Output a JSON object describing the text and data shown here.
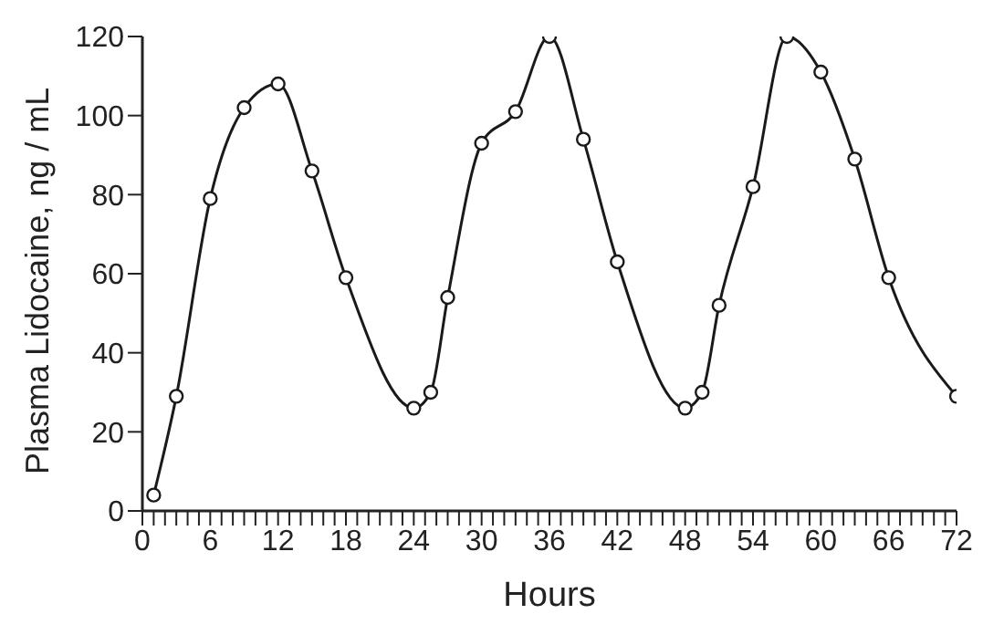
{
  "chart_data": {
    "type": "line",
    "xlabel": "Hours",
    "ylabel": "Plasma Lidocaine, ng / mL",
    "x": [
      1,
      3,
      6,
      9,
      12,
      15,
      18,
      24,
      25.5,
      27,
      30,
      33,
      36,
      39,
      42,
      48,
      49.5,
      51,
      54,
      57,
      60,
      63,
      66,
      72
    ],
    "series": [
      {
        "color": "#1a1a1a",
        "values": [
          4,
          29,
          79,
          102,
          108,
          86,
          59,
          26,
          30,
          54,
          93,
          101,
          120,
          94,
          63,
          26,
          30,
          52,
          82,
          120,
          111,
          89,
          59,
          29
        ]
      }
    ],
    "xlim": [
      0,
      72
    ],
    "ylim": [
      0,
      120
    ],
    "xticks": [
      0,
      {
        "value": 1,
        "label": null
      },
      {
        "value": 2,
        "label": null
      },
      {
        "value": 3,
        "label": null
      },
      {
        "value": 4,
        "label": null
      },
      {
        "value": 5,
        "label": null
      },
      6,
      {
        "value": 7,
        "label": null
      },
      {
        "value": 8,
        "label": null
      },
      {
        "value": 9,
        "label": null
      },
      {
        "value": 10,
        "label": null
      },
      {
        "value": 11,
        "label": null
      },
      12,
      {
        "value": 13,
        "label": null
      },
      {
        "value": 14,
        "label": null
      },
      {
        "value": 15,
        "label": null
      },
      {
        "value": 16,
        "label": null
      },
      {
        "value": 17,
        "label": null
      },
      18,
      {
        "value": 19,
        "label": null
      },
      {
        "value": 20,
        "label": null
      },
      {
        "value": 21,
        "label": null
      },
      {
        "value": 22,
        "label": null
      },
      {
        "value": 23,
        "label": null
      },
      24,
      {
        "value": 25,
        "label": null
      },
      {
        "value": 26,
        "label": null
      },
      {
        "value": 27,
        "label": null
      },
      {
        "value": 28,
        "label": null
      },
      {
        "value": 29,
        "label": null
      },
      30,
      {
        "value": 31,
        "label": null
      },
      {
        "value": 32,
        "label": null
      },
      {
        "value": 33,
        "label": null
      },
      {
        "value": 34,
        "label": null
      },
      {
        "value": 35,
        "label": null
      },
      36,
      {
        "value": 37,
        "label": null
      },
      {
        "value": 38,
        "label": null
      },
      {
        "value": 39,
        "label": null
      },
      {
        "value": 40,
        "label": null
      },
      {
        "value": 41,
        "label": null
      },
      42,
      {
        "value": 43,
        "label": null
      },
      {
        "value": 44,
        "label": null
      },
      {
        "value": 45,
        "label": null
      },
      {
        "value": 46,
        "label": null
      },
      {
        "value": 47,
        "label": null
      },
      48,
      {
        "value": 49,
        "label": null
      },
      {
        "value": 50,
        "label": null
      },
      {
        "value": 51,
        "label": null
      },
      {
        "value": 52,
        "label": null
      },
      {
        "value": 53,
        "label": null
      },
      54,
      {
        "value": 55,
        "label": null
      },
      {
        "value": 56,
        "label": null
      },
      {
        "value": 57,
        "label": null
      },
      {
        "value": 58,
        "label": null
      },
      {
        "value": 59,
        "label": null
      },
      60,
      {
        "value": 61,
        "label": null
      },
      {
        "value": 62,
        "label": null
      },
      {
        "value": 63,
        "label": null
      },
      {
        "value": 64,
        "label": null
      },
      {
        "value": 65,
        "label": null
      },
      66,
      {
        "value": 67,
        "label": null
      },
      {
        "value": 68,
        "label": null
      },
      {
        "value": 69,
        "label": null
      },
      {
        "value": 70,
        "label": null
      },
      {
        "value": 71,
        "label": null
      },
      72
    ],
    "yticks": [
      0,
      20,
      40,
      60,
      80,
      100,
      120
    ],
    "grid": false,
    "legend": false,
    "marker": "circle",
    "line_style": "solid"
  }
}
